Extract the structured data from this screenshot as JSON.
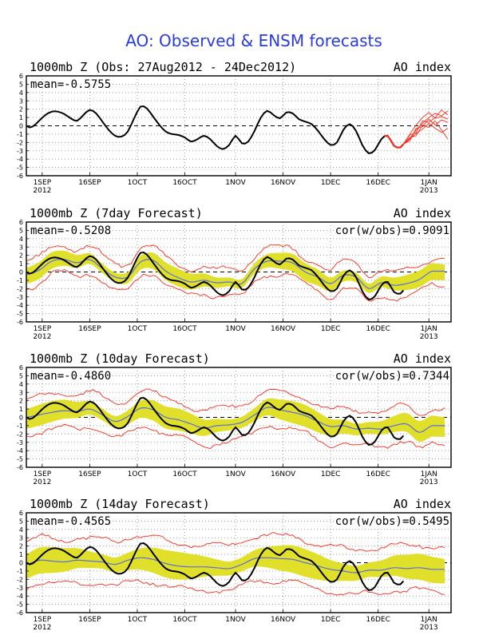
{
  "title": "AO: Observed & ENSM forecasts",
  "colors": {
    "title": "#2b3bd9",
    "observed": "#000000",
    "ensemble_member": "#ff2a1a",
    "ensemble_mean": "#5b6fd6",
    "spread": "#e0e02a",
    "frame": "#000000",
    "grid": "#8a8a8a"
  },
  "x_ticks": [
    {
      "label": "1SEP",
      "sub": "2012",
      "date": "2012-09-01"
    },
    {
      "label": "16SEP",
      "sub": "",
      "date": "2012-09-16"
    },
    {
      "label": "1OCT",
      "sub": "",
      "date": "2012-10-01"
    },
    {
      "label": "16OCT",
      "sub": "",
      "date": "2012-10-16"
    },
    {
      "label": "1NOV",
      "sub": "",
      "date": "2012-11-01"
    },
    {
      "label": "16NOV",
      "sub": "",
      "date": "2012-11-16"
    },
    {
      "label": "1DEC",
      "sub": "",
      "date": "2012-12-01"
    },
    {
      "label": "16DEC",
      "sub": "",
      "date": "2012-12-16"
    },
    {
      "label": "1JAN",
      "sub": "2013",
      "date": "2013-01-01"
    }
  ],
  "y_ticks": [
    "6",
    "5",
    "4",
    "3",
    "2",
    "1",
    "0",
    "-1",
    "-2",
    "-3",
    "-4",
    "-5",
    "-6"
  ],
  "chart_data": [
    {
      "type": "line",
      "title": "1000mb Z (Obs: 27Aug2012 - 24Dec2012)",
      "right_label": "AO index",
      "mean_label": "mean=-0.5755",
      "cor_label": "",
      "xlim": [
        "2012-08-27",
        "2013-01-08"
      ],
      "ylim": [
        -6,
        6
      ],
      "grid": true,
      "observed": [
        [
          "2012-08-27",
          0.0
        ],
        [
          "2012-08-28",
          -0.2
        ],
        [
          "2012-08-29",
          -0.1
        ],
        [
          "2012-08-31",
          0.6
        ],
        [
          "2012-09-02",
          1.3
        ],
        [
          "2012-09-04",
          1.7
        ],
        [
          "2012-09-06",
          1.7
        ],
        [
          "2012-09-08",
          1.4
        ],
        [
          "2012-09-10",
          0.9
        ],
        [
          "2012-09-12",
          0.6
        ],
        [
          "2012-09-14",
          1.3
        ],
        [
          "2012-09-16",
          1.9
        ],
        [
          "2012-09-18",
          1.5
        ],
        [
          "2012-09-20",
          0.5
        ],
        [
          "2012-09-22",
          -0.5
        ],
        [
          "2012-09-24",
          -1.2
        ],
        [
          "2012-09-26",
          -1.3
        ],
        [
          "2012-09-28",
          -0.7
        ],
        [
          "2012-09-30",
          0.9
        ],
        [
          "2012-10-02",
          2.3
        ],
        [
          "2012-10-04",
          2.1
        ],
        [
          "2012-10-06",
          1.1
        ],
        [
          "2012-10-08",
          0.1
        ],
        [
          "2012-10-10",
          -0.7
        ],
        [
          "2012-10-12",
          -1.0
        ],
        [
          "2012-10-14",
          -1.1
        ],
        [
          "2012-10-16",
          -1.4
        ],
        [
          "2012-10-18",
          -1.9
        ],
        [
          "2012-10-20",
          -1.6
        ],
        [
          "2012-10-22",
          -1.2
        ],
        [
          "2012-10-24",
          -1.6
        ],
        [
          "2012-10-26",
          -2.4
        ],
        [
          "2012-10-28",
          -2.8
        ],
        [
          "2012-10-30",
          -2.3
        ],
        [
          "2012-11-01",
          -1.2
        ],
        [
          "2012-11-03",
          -2.1
        ],
        [
          "2012-11-05",
          -1.9
        ],
        [
          "2012-11-07",
          -0.6
        ],
        [
          "2012-11-09",
          1.0
        ],
        [
          "2012-11-11",
          1.8
        ],
        [
          "2012-11-13",
          1.3
        ],
        [
          "2012-11-15",
          0.9
        ],
        [
          "2012-11-17",
          1.6
        ],
        [
          "2012-11-19",
          1.5
        ],
        [
          "2012-11-21",
          0.8
        ],
        [
          "2012-11-23",
          0.5
        ],
        [
          "2012-11-25",
          0.2
        ],
        [
          "2012-11-27",
          -0.6
        ],
        [
          "2012-11-29",
          -1.6
        ],
        [
          "2012-12-01",
          -2.3
        ],
        [
          "2012-12-03",
          -2.0
        ],
        [
          "2012-12-05",
          -0.5
        ],
        [
          "2012-12-07",
          0.2
        ],
        [
          "2012-12-09",
          -0.6
        ],
        [
          "2012-12-11",
          -2.3
        ],
        [
          "2012-12-13",
          -3.3
        ],
        [
          "2012-12-15",
          -2.9
        ],
        [
          "2012-12-17",
          -1.6
        ],
        [
          "2012-12-19",
          -1.2
        ],
        [
          "2012-12-21",
          -2.4
        ],
        [
          "2012-12-23",
          -2.6
        ],
        [
          "2012-12-24",
          -2.2
        ]
      ],
      "members": [
        [
          [
            "2012-12-24",
            -2.2
          ],
          [
            "2012-12-26",
            -1.5
          ],
          [
            "2012-12-28",
            -0.5
          ],
          [
            "2012-12-30",
            0.3
          ],
          [
            "2013-01-01",
            1.0
          ],
          [
            "2013-01-03",
            1.5
          ],
          [
            "2013-01-05",
            1.2
          ],
          [
            "2013-01-07",
            1.8
          ]
        ],
        [
          [
            "2012-12-24",
            -2.2
          ],
          [
            "2012-12-26",
            -1.1
          ],
          [
            "2012-12-28",
            -0.8
          ],
          [
            "2012-12-30",
            0.6
          ],
          [
            "2013-01-01",
            0.4
          ],
          [
            "2013-01-03",
            1.0
          ],
          [
            "2013-01-05",
            1.9
          ],
          [
            "2013-01-07",
            1.3
          ]
        ],
        [
          [
            "2012-12-24",
            -2.2
          ],
          [
            "2012-12-26",
            -1.8
          ],
          [
            "2012-12-28",
            -0.3
          ],
          [
            "2012-12-30",
            -0.1
          ],
          [
            "2013-01-01",
            0.8
          ],
          [
            "2013-01-03",
            0.1
          ],
          [
            "2013-01-05",
            0.7
          ],
          [
            "2013-01-07",
            0.4
          ]
        ],
        [
          [
            "2012-12-24",
            -2.2
          ],
          [
            "2012-12-26",
            -1.4
          ],
          [
            "2012-12-28",
            -1.2
          ],
          [
            "2012-12-30",
            0.1
          ],
          [
            "2013-01-01",
            -0.2
          ],
          [
            "2013-01-03",
            0.6
          ],
          [
            "2013-01-05",
            -0.5
          ],
          [
            "2013-01-07",
            -1.6
          ]
        ],
        [
          [
            "2012-12-24",
            -2.2
          ],
          [
            "2012-12-26",
            -1.0
          ],
          [
            "2012-12-28",
            0.1
          ],
          [
            "2012-12-30",
            1.0
          ],
          [
            "2013-01-01",
            1.6
          ],
          [
            "2013-01-03",
            0.9
          ],
          [
            "2013-01-05",
            1.1
          ],
          [
            "2013-01-07",
            0.8
          ]
        ],
        [
          [
            "2012-12-24",
            -2.2
          ],
          [
            "2012-12-26",
            -1.6
          ],
          [
            "2012-12-28",
            -0.9
          ],
          [
            "2012-12-30",
            -0.4
          ],
          [
            "2013-01-01",
            0.3
          ],
          [
            "2013-01-03",
            -0.3
          ],
          [
            "2013-01-05",
            -0.8
          ],
          [
            "2013-01-07",
            -0.3
          ]
        ]
      ]
    },
    {
      "type": "line",
      "title": "1000mb Z (7day Forecast)",
      "right_label": "AO index",
      "mean_label": "mean=-0.5208",
      "cor_label": "cor(w/obs)=0.9091",
      "xlim": [
        "2012-08-27",
        "2013-01-08"
      ],
      "ylim": [
        -6,
        6
      ],
      "grid": true,
      "observed_end": "2012-12-24",
      "forecast_mean": [
        [
          "2012-08-27",
          -0.3
        ],
        [
          "2012-08-31",
          0.2
        ],
        [
          "2012-09-04",
          1.3
        ],
        [
          "2012-09-08",
          1.5
        ],
        [
          "2012-09-12",
          1.1
        ],
        [
          "2012-09-16",
          1.5
        ],
        [
          "2012-09-20",
          0.4
        ],
        [
          "2012-09-24",
          -0.6
        ],
        [
          "2012-09-28",
          -0.6
        ],
        [
          "2012-10-02",
          1.2
        ],
        [
          "2012-10-06",
          1.4
        ],
        [
          "2012-10-10",
          0.1
        ],
        [
          "2012-10-14",
          -0.7
        ],
        [
          "2012-10-18",
          -1.2
        ],
        [
          "2012-10-22",
          -1.0
        ],
        [
          "2012-10-26",
          -1.3
        ],
        [
          "2012-10-30",
          -1.2
        ],
        [
          "2012-11-03",
          -1.4
        ],
        [
          "2012-11-07",
          0.4
        ],
        [
          "2012-11-11",
          1.3
        ],
        [
          "2012-11-15",
          1.3
        ],
        [
          "2012-11-19",
          1.1
        ],
        [
          "2012-11-23",
          0.0
        ],
        [
          "2012-11-27",
          -0.6
        ],
        [
          "2012-12-01",
          -1.4
        ],
        [
          "2012-12-05",
          -0.4
        ],
        [
          "2012-12-09",
          -0.6
        ],
        [
          "2012-12-13",
          -2.0
        ],
        [
          "2012-12-17",
          -1.3
        ],
        [
          "2012-12-21",
          -1.6
        ],
        [
          "2012-12-25",
          -1.4
        ],
        [
          "2012-12-29",
          -0.9
        ],
        [
          "2013-01-02",
          0.1
        ]
      ],
      "spread": 0.8,
      "member_envelope": 1.6
    },
    {
      "type": "line",
      "title": "1000mb Z (10day Forecast)",
      "right_label": "AO index",
      "mean_label": "mean=-0.4860",
      "cor_label": "cor(w/obs)=0.7344",
      "xlim": [
        "2012-08-27",
        "2013-01-08"
      ],
      "ylim": [
        -6,
        6
      ],
      "grid": true,
      "observed_end": "2012-12-24",
      "forecast_mean": [
        [
          "2012-08-27",
          0.0
        ],
        [
          "2012-08-31",
          0.3
        ],
        [
          "2012-09-04",
          0.6
        ],
        [
          "2012-09-08",
          0.8
        ],
        [
          "2012-09-12",
          0.7
        ],
        [
          "2012-09-16",
          1.0
        ],
        [
          "2012-09-20",
          0.3
        ],
        [
          "2012-09-24",
          -0.5
        ],
        [
          "2012-09-28",
          0.1
        ],
        [
          "2012-10-02",
          1.1
        ],
        [
          "2012-10-06",
          0.9
        ],
        [
          "2012-10-10",
          0.0
        ],
        [
          "2012-10-14",
          -0.3
        ],
        [
          "2012-10-18",
          -0.8
        ],
        [
          "2012-10-22",
          -1.3
        ],
        [
          "2012-10-26",
          -1.0
        ],
        [
          "2012-10-30",
          -0.9
        ],
        [
          "2012-11-03",
          -0.6
        ],
        [
          "2012-11-07",
          0.3
        ],
        [
          "2012-11-11",
          1.2
        ],
        [
          "2012-11-15",
          0.9
        ],
        [
          "2012-11-19",
          0.6
        ],
        [
          "2012-11-23",
          0.2
        ],
        [
          "2012-11-27",
          -0.5
        ],
        [
          "2012-12-01",
          -1.1
        ],
        [
          "2012-12-05",
          -1.0
        ],
        [
          "2012-12-09",
          -1.4
        ],
        [
          "2012-12-13",
          -1.3
        ],
        [
          "2012-12-17",
          -1.4
        ],
        [
          "2012-12-21",
          -1.0
        ],
        [
          "2012-12-25",
          -0.8
        ],
        [
          "2012-12-29",
          -1.8
        ],
        [
          "2013-01-02",
          -1.0
        ]
      ],
      "spread": 1.0,
      "member_envelope": 2.1
    },
    {
      "type": "line",
      "title": "1000mb Z (14day Forecast)",
      "right_label": "AO index",
      "mean_label": "mean=-0.4565",
      "cor_label": "cor(w/obs)=0.5495",
      "xlim": [
        "2012-08-27",
        "2013-01-08"
      ],
      "ylim": [
        -6,
        6
      ],
      "grid": true,
      "observed_end": "2012-12-24",
      "forecast_mean": [
        [
          "2012-08-27",
          -0.2
        ],
        [
          "2012-08-31",
          0.3
        ],
        [
          "2012-09-04",
          0.2
        ],
        [
          "2012-09-08",
          0.1
        ],
        [
          "2012-09-12",
          0.3
        ],
        [
          "2012-09-16",
          0.2
        ],
        [
          "2012-09-20",
          0.1
        ],
        [
          "2012-09-24",
          -0.2
        ],
        [
          "2012-09-28",
          0.3
        ],
        [
          "2012-10-02",
          0.6
        ],
        [
          "2012-10-06",
          0.4
        ],
        [
          "2012-10-10",
          -0.1
        ],
        [
          "2012-10-14",
          -0.4
        ],
        [
          "2012-10-18",
          -0.5
        ],
        [
          "2012-10-22",
          -0.5
        ],
        [
          "2012-10-26",
          -0.6
        ],
        [
          "2012-10-30",
          -0.7
        ],
        [
          "2012-11-03",
          -0.2
        ],
        [
          "2012-11-07",
          0.5
        ],
        [
          "2012-11-11",
          0.6
        ],
        [
          "2012-11-15",
          0.5
        ],
        [
          "2012-11-19",
          0.4
        ],
        [
          "2012-11-23",
          0.0
        ],
        [
          "2012-11-27",
          -0.4
        ],
        [
          "2012-12-01",
          -0.8
        ],
        [
          "2012-12-05",
          -1.0
        ],
        [
          "2012-12-09",
          -1.2
        ],
        [
          "2012-12-13",
          -0.9
        ],
        [
          "2012-12-17",
          -0.9
        ],
        [
          "2012-12-21",
          -0.6
        ],
        [
          "2012-12-25",
          -0.7
        ],
        [
          "2012-12-29",
          -0.6
        ],
        [
          "2013-01-02",
          -0.8
        ]
      ],
      "spread": 1.25,
      "member_envelope": 2.7
    }
  ]
}
